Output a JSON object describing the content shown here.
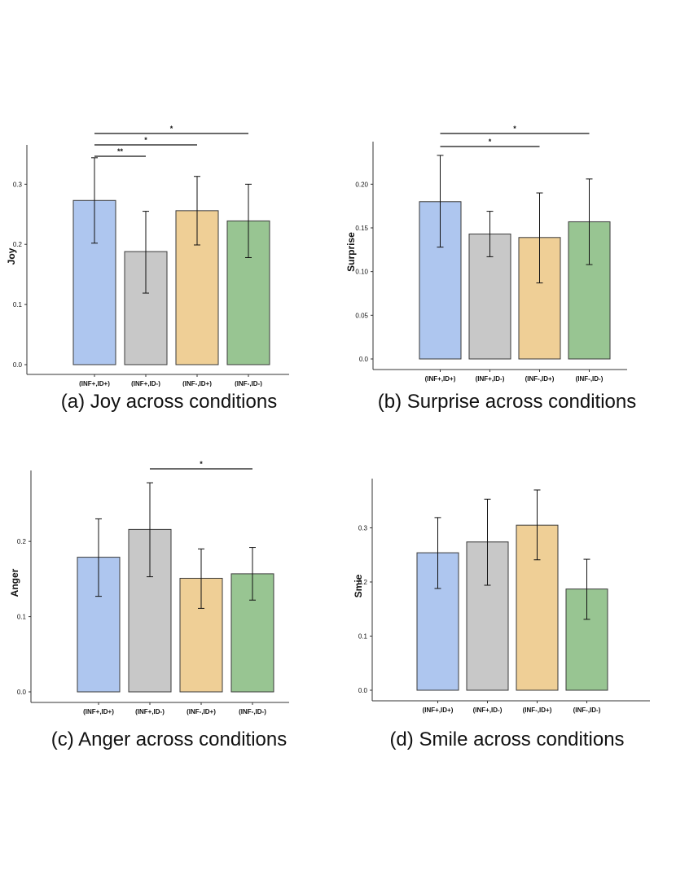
{
  "chart_data": [
    {
      "id": "a",
      "type": "bar",
      "caption": "(a) Joy across conditions",
      "ylabel": "Joy",
      "categories": [
        "(INF+,ID+)",
        "(INF+,ID-)",
        "(INF-,ID+)",
        "(INF-,ID-)"
      ],
      "values": [
        0.273,
        0.188,
        0.256,
        0.239
      ],
      "error_low": [
        0.202,
        0.119,
        0.199,
        0.178
      ],
      "error_high": [
        0.344,
        0.255,
        0.313,
        0.3
      ],
      "colors": [
        "#aec6ef",
        "#c8c8c8",
        "#efcf96",
        "#98c592"
      ],
      "ylim": [
        0,
        0.36
      ],
      "yticks": [
        0.0,
        0.1,
        0.2,
        0.3
      ],
      "ytick_labels": [
        "0.0",
        "0.1",
        "0.2",
        "0.3"
      ],
      "significance": [
        {
          "from": 0,
          "to": 1,
          "label": "**"
        },
        {
          "from": 0,
          "to": 2,
          "label": "*"
        },
        {
          "from": 0,
          "to": 3,
          "label": "*"
        }
      ]
    },
    {
      "id": "b",
      "type": "bar",
      "caption": "(b) Surprise across conditions",
      "ylabel": "Surprise",
      "categories": [
        "(INF+,ID+)",
        "(INF+,ID-)",
        "(INF-,ID+)",
        "(INF-,ID-)"
      ],
      "values": [
        0.18,
        0.143,
        0.139,
        0.157
      ],
      "error_low": [
        0.128,
        0.117,
        0.087,
        0.108
      ],
      "error_high": [
        0.233,
        0.169,
        0.19,
        0.206
      ],
      "colors": [
        "#aec6ef",
        "#c8c8c8",
        "#efcf96",
        "#98c592"
      ],
      "ylim": [
        0,
        0.245
      ],
      "yticks": [
        0.0,
        0.05,
        0.1,
        0.15,
        0.2
      ],
      "ytick_labels": [
        "0.0",
        "0.05",
        "0.10",
        "0.15",
        "0.20"
      ],
      "significance": [
        {
          "from": 0,
          "to": 2,
          "label": "*"
        },
        {
          "from": 0,
          "to": 3,
          "label": "*"
        }
      ]
    },
    {
      "id": "c",
      "type": "bar",
      "caption": "(c) Anger across conditions",
      "ylabel": "Anger",
      "categories": [
        "(INF+,ID+)",
        "(INF+,ID-)",
        "(INF-,ID+)",
        "(INF-,ID-)"
      ],
      "values": [
        0.179,
        0.216,
        0.151,
        0.157
      ],
      "error_low": [
        0.127,
        0.153,
        0.111,
        0.122
      ],
      "error_high": [
        0.23,
        0.278,
        0.19,
        0.192
      ],
      "colors": [
        "#aec6ef",
        "#c8c8c8",
        "#efcf96",
        "#98c592"
      ],
      "ylim": [
        0,
        0.29
      ],
      "yticks": [
        0.0,
        0.1,
        0.2
      ],
      "ytick_labels": [
        "0.0",
        "0.1",
        "0.2"
      ],
      "significance": [
        {
          "from": 1,
          "to": 3,
          "label": "*"
        }
      ]
    },
    {
      "id": "d",
      "type": "bar",
      "caption": "(d) Smile across conditions",
      "ylabel": "Smie",
      "categories": [
        "(INF+,ID+)",
        "(INF+,ID-)",
        "(INF-,ID+)",
        "(INF-,ID-)"
      ],
      "values": [
        0.254,
        0.274,
        0.305,
        0.187
      ],
      "error_low": [
        0.188,
        0.194,
        0.241,
        0.131
      ],
      "error_high": [
        0.319,
        0.353,
        0.37,
        0.242
      ],
      "colors": [
        "#aec6ef",
        "#c8c8c8",
        "#efcf96",
        "#98c592"
      ],
      "ylim": [
        0,
        0.385
      ],
      "yticks": [
        0.0,
        0.1,
        0.2,
        0.3
      ],
      "ytick_labels": [
        "0.0",
        "0.1",
        "0.2",
        "0.3"
      ],
      "significance": []
    }
  ]
}
